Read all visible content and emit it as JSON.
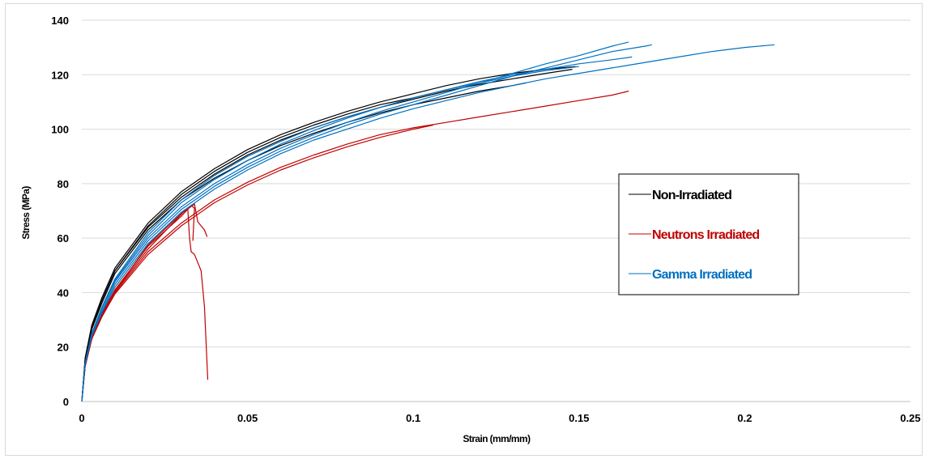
{
  "chart_data": {
    "type": "line",
    "title": "",
    "xlabel": "Strain (mm/mm)",
    "ylabel": "Stress (MPa)",
    "xlim": [
      0,
      0.25
    ],
    "ylim": [
      0,
      140
    ],
    "x_ticks": [
      "0",
      "0.05",
      "0.1",
      "0.15",
      "0.2",
      "0.25"
    ],
    "y_ticks": [
      "0",
      "20",
      "40",
      "60",
      "80",
      "100",
      "120",
      "140"
    ],
    "grid": "horizontal",
    "legend_position": "center-right",
    "legend": [
      {
        "label": "Non-Irradiated",
        "color": "#000000"
      },
      {
        "label": "Neutrons Irradiated",
        "color": "#c00000"
      },
      {
        "label": "Gamma Irradiated",
        "color": "#0070c0"
      }
    ],
    "series": [
      {
        "group": "Non-Irradiated",
        "color": "#000000",
        "points": [
          [
            0,
            0
          ],
          [
            0.001,
            15
          ],
          [
            0.003,
            27
          ],
          [
            0.006,
            37
          ],
          [
            0.01,
            48
          ],
          [
            0.02,
            64
          ],
          [
            0.03,
            75
          ],
          [
            0.04,
            83.5
          ],
          [
            0.05,
            90.5
          ],
          [
            0.06,
            96
          ],
          [
            0.07,
            100.5
          ],
          [
            0.08,
            104.5
          ],
          [
            0.09,
            108
          ],
          [
            0.1,
            111
          ],
          [
            0.11,
            114
          ],
          [
            0.12,
            116.5
          ],
          [
            0.13,
            118.5
          ],
          [
            0.14,
            120.5
          ],
          [
            0.148,
            122
          ]
        ]
      },
      {
        "group": "Non-Irradiated",
        "color": "#000000",
        "points": [
          [
            0,
            0
          ],
          [
            0.001,
            16
          ],
          [
            0.003,
            28
          ],
          [
            0.006,
            38
          ],
          [
            0.01,
            49
          ],
          [
            0.02,
            65.5
          ],
          [
            0.03,
            77
          ],
          [
            0.04,
            85.5
          ],
          [
            0.05,
            92.5
          ],
          [
            0.06,
            98
          ],
          [
            0.07,
            102.5
          ],
          [
            0.08,
            106.5
          ],
          [
            0.09,
            110
          ],
          [
            0.1,
            113
          ],
          [
            0.11,
            116
          ],
          [
            0.12,
            118.5
          ],
          [
            0.13,
            120.5
          ],
          [
            0.14,
            122
          ],
          [
            0.149,
            123
          ]
        ]
      },
      {
        "group": "Non-Irradiated",
        "color": "#000000",
        "points": [
          [
            0,
            0
          ],
          [
            0.001,
            15
          ],
          [
            0.003,
            26.5
          ],
          [
            0.006,
            36
          ],
          [
            0.01,
            47
          ],
          [
            0.02,
            63
          ],
          [
            0.03,
            74
          ],
          [
            0.04,
            82
          ],
          [
            0.05,
            88.5
          ],
          [
            0.06,
            94
          ],
          [
            0.07,
            98.5
          ],
          [
            0.08,
            102.5
          ],
          [
            0.09,
            106
          ],
          [
            0.1,
            109
          ],
          [
            0.11,
            111.5
          ],
          [
            0.12,
            114
          ],
          [
            0.13,
            116
          ],
          [
            0.134,
            117
          ]
        ]
      },
      {
        "group": "Non-Irradiated",
        "color": "#000000",
        "points": [
          [
            0,
            0
          ],
          [
            0.001,
            15
          ],
          [
            0.003,
            27
          ],
          [
            0.006,
            37
          ],
          [
            0.01,
            48
          ],
          [
            0.02,
            64.5
          ],
          [
            0.03,
            76
          ],
          [
            0.04,
            84.5
          ],
          [
            0.05,
            91.5
          ],
          [
            0.06,
            97
          ],
          [
            0.07,
            101.5
          ],
          [
            0.08,
            105.5
          ],
          [
            0.09,
            109
          ],
          [
            0.1,
            111.5
          ],
          [
            0.105,
            113
          ]
        ]
      },
      {
        "group": "Neutrons Irradiated",
        "color": "#c00000",
        "points": [
          [
            0,
            0
          ],
          [
            0.001,
            13
          ],
          [
            0.003,
            23
          ],
          [
            0.006,
            31
          ],
          [
            0.01,
            39.5
          ],
          [
            0.02,
            54
          ],
          [
            0.03,
            64.5
          ],
          [
            0.04,
            73
          ],
          [
            0.05,
            79.5
          ],
          [
            0.06,
            85
          ],
          [
            0.07,
            89.5
          ],
          [
            0.08,
            93.5
          ],
          [
            0.09,
            97
          ],
          [
            0.1,
            100
          ],
          [
            0.106,
            101.5
          ]
        ]
      },
      {
        "group": "Neutrons Irradiated",
        "color": "#c00000",
        "points": [
          [
            0,
            0
          ],
          [
            0.001,
            13
          ],
          [
            0.003,
            23
          ],
          [
            0.006,
            31
          ],
          [
            0.01,
            40
          ],
          [
            0.02,
            55
          ],
          [
            0.03,
            65.5
          ],
          [
            0.04,
            74
          ],
          [
            0.05,
            80.5
          ],
          [
            0.06,
            86
          ],
          [
            0.07,
            90.5
          ],
          [
            0.08,
            94.5
          ],
          [
            0.09,
            98
          ],
          [
            0.1,
            100.5
          ],
          [
            0.11,
            102.5
          ],
          [
            0.12,
            104.5
          ],
          [
            0.13,
            106.5
          ],
          [
            0.14,
            108.5
          ],
          [
            0.15,
            110.5
          ],
          [
            0.16,
            112.5
          ],
          [
            0.165,
            114
          ]
        ]
      },
      {
        "group": "Neutrons Irradiated",
        "color": "#c00000",
        "points": [
          [
            0,
            0
          ],
          [
            0.001,
            13
          ],
          [
            0.003,
            23.5
          ],
          [
            0.006,
            32
          ],
          [
            0.01,
            41
          ],
          [
            0.02,
            57
          ],
          [
            0.03,
            68
          ],
          [
            0.033,
            72
          ],
          [
            0.034,
            71
          ],
          [
            0.0335,
            59
          ]
        ]
      },
      {
        "group": "Neutrons Irradiated",
        "color": "#c00000",
        "points": [
          [
            0,
            0
          ],
          [
            0.001,
            13
          ],
          [
            0.003,
            23
          ],
          [
            0.006,
            31.5
          ],
          [
            0.01,
            40.5
          ],
          [
            0.02,
            56
          ],
          [
            0.031,
            70
          ],
          [
            0.032,
            70.5
          ],
          [
            0.0325,
            60
          ],
          [
            0.033,
            55
          ],
          [
            0.034,
            54
          ],
          [
            0.036,
            48
          ],
          [
            0.037,
            35
          ],
          [
            0.038,
            8
          ]
        ]
      },
      {
        "group": "Neutrons Irradiated",
        "color": "#c00000",
        "points": [
          [
            0,
            0
          ],
          [
            0.001,
            13
          ],
          [
            0.003,
            23
          ],
          [
            0.006,
            31.5
          ],
          [
            0.01,
            40.5
          ],
          [
            0.02,
            57.5
          ],
          [
            0.03,
            69
          ],
          [
            0.034,
            72.5
          ],
          [
            0.035,
            66
          ],
          [
            0.037,
            63
          ],
          [
            0.0378,
            60.5
          ]
        ]
      },
      {
        "group": "Gamma Irradiated",
        "color": "#0070c0",
        "points": [
          [
            0,
            0
          ],
          [
            0.001,
            14
          ],
          [
            0.003,
            25
          ],
          [
            0.006,
            34
          ],
          [
            0.01,
            44
          ],
          [
            0.02,
            60
          ],
          [
            0.03,
            71.5
          ],
          [
            0.04,
            80
          ],
          [
            0.05,
            87
          ],
          [
            0.06,
            93
          ],
          [
            0.07,
            98
          ],
          [
            0.08,
            102.5
          ],
          [
            0.09,
            106.5
          ],
          [
            0.1,
            110
          ],
          [
            0.11,
            113.5
          ],
          [
            0.12,
            117
          ],
          [
            0.13,
            120.5
          ],
          [
            0.14,
            124
          ],
          [
            0.15,
            127
          ],
          [
            0.16,
            130.5
          ],
          [
            0.165,
            132
          ]
        ]
      },
      {
        "group": "Gamma Irradiated",
        "color": "#0070c0",
        "points": [
          [
            0,
            0
          ],
          [
            0.001,
            14
          ],
          [
            0.003,
            24.5
          ],
          [
            0.006,
            33
          ],
          [
            0.01,
            43
          ],
          [
            0.02,
            59
          ],
          [
            0.03,
            70.5
          ],
          [
            0.04,
            79
          ],
          [
            0.05,
            86
          ],
          [
            0.06,
            92
          ],
          [
            0.07,
            97
          ],
          [
            0.08,
            101.5
          ],
          [
            0.09,
            105.5
          ],
          [
            0.1,
            109
          ],
          [
            0.11,
            112.5
          ],
          [
            0.12,
            116
          ],
          [
            0.13,
            119.5
          ],
          [
            0.14,
            122.5
          ],
          [
            0.15,
            125.5
          ],
          [
            0.16,
            128.5
          ],
          [
            0.17,
            130.5
          ],
          [
            0.172,
            131
          ]
        ]
      },
      {
        "group": "Gamma Irradiated",
        "color": "#0070c0",
        "points": [
          [
            0,
            0
          ],
          [
            0.001,
            13.5
          ],
          [
            0.003,
            24
          ],
          [
            0.006,
            32.5
          ],
          [
            0.01,
            42
          ],
          [
            0.02,
            58
          ],
          [
            0.03,
            69.5
          ],
          [
            0.04,
            78
          ],
          [
            0.05,
            85
          ],
          [
            0.06,
            91
          ],
          [
            0.07,
            96
          ],
          [
            0.08,
            100
          ],
          [
            0.09,
            104
          ],
          [
            0.1,
            107.5
          ],
          [
            0.11,
            110.5
          ],
          [
            0.12,
            113.5
          ],
          [
            0.13,
            116
          ],
          [
            0.14,
            118.5
          ],
          [
            0.15,
            120.5
          ],
          [
            0.16,
            122.5
          ],
          [
            0.17,
            124.5
          ],
          [
            0.18,
            126.5
          ],
          [
            0.19,
            128.5
          ],
          [
            0.2,
            130
          ],
          [
            0.209,
            131
          ]
        ]
      },
      {
        "group": "Gamma Irradiated",
        "color": "#0070c0",
        "points": [
          [
            0,
            0
          ],
          [
            0.001,
            14
          ],
          [
            0.003,
            25
          ],
          [
            0.006,
            34
          ],
          [
            0.01,
            44.5
          ],
          [
            0.02,
            61
          ],
          [
            0.03,
            73
          ],
          [
            0.04,
            81.5
          ],
          [
            0.05,
            88.5
          ],
          [
            0.06,
            94.5
          ],
          [
            0.07,
            99.5
          ],
          [
            0.08,
            104
          ],
          [
            0.09,
            108
          ],
          [
            0.1,
            111.5
          ],
          [
            0.11,
            114.5
          ],
          [
            0.12,
            117.5
          ],
          [
            0.13,
            120
          ],
          [
            0.14,
            122
          ],
          [
            0.15,
            124
          ],
          [
            0.16,
            125.5
          ],
          [
            0.166,
            126.5
          ]
        ]
      },
      {
        "group": "Gamma Irradiated",
        "color": "#0070c0",
        "points": [
          [
            0,
            0
          ],
          [
            0.001,
            14
          ],
          [
            0.003,
            25
          ],
          [
            0.006,
            34.5
          ],
          [
            0.01,
            45
          ],
          [
            0.02,
            62
          ],
          [
            0.03,
            74
          ],
          [
            0.04,
            83
          ],
          [
            0.05,
            90
          ],
          [
            0.06,
            95.5
          ],
          [
            0.07,
            100.5
          ],
          [
            0.08,
            104.5
          ],
          [
            0.09,
            108
          ],
          [
            0.1,
            111.5
          ],
          [
            0.11,
            114.5
          ],
          [
            0.12,
            117
          ],
          [
            0.13,
            119.5
          ],
          [
            0.14,
            121.5
          ],
          [
            0.15,
            123
          ]
        ]
      }
    ]
  }
}
